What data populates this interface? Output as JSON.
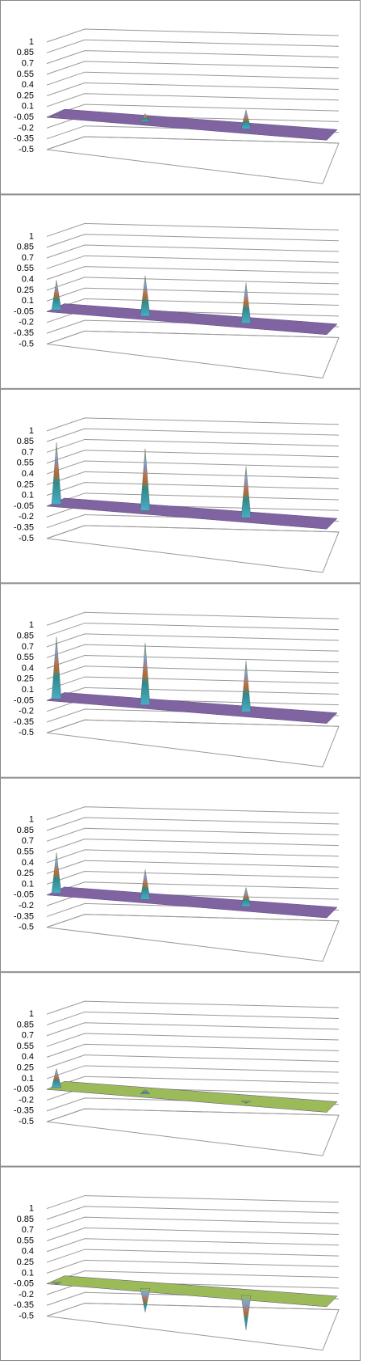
{
  "chart_data": [
    {
      "type": "surface",
      "color": "#8064a2",
      "categories": [
        null,
        null,
        null
      ],
      "values": [
        -0.05,
        0.1,
        0.25
      ],
      "ylim": [
        -0.5,
        1
      ],
      "yticks": [
        1,
        0.85,
        0.7,
        0.55,
        0.4,
        0.25,
        0.1,
        -0.05,
        -0.2,
        -0.35,
        -0.5
      ],
      "grid": true
    },
    {
      "type": "surface",
      "color": "#8064a2",
      "categories": [
        null,
        null,
        null
      ],
      "values": [
        0.4,
        0.55,
        0.55
      ],
      "ylim": [
        -0.5,
        1
      ],
      "yticks": [
        1,
        0.85,
        0.7,
        0.55,
        0.4,
        0.25,
        0.1,
        -0.05,
        -0.2,
        -0.35,
        -0.5
      ],
      "grid": true
    },
    {
      "type": "surface",
      "color": "#8064a2",
      "categories": [
        null,
        null,
        null
      ],
      "values": [
        0.85,
        0.85,
        0.7
      ],
      "ylim": [
        -0.5,
        1
      ],
      "yticks": [
        1,
        0.85,
        0.7,
        0.55,
        0.4,
        0.25,
        0.1,
        -0.05,
        -0.2,
        -0.35,
        -0.5
      ],
      "grid": true
    },
    {
      "type": "surface",
      "color": "#8064a2",
      "categories": [
        null,
        null,
        null
      ],
      "values": [
        0.85,
        0.85,
        0.7
      ],
      "ylim": [
        -0.5,
        1
      ],
      "yticks": [
        1,
        0.85,
        0.7,
        0.55,
        0.4,
        0.25,
        0.1,
        -0.05,
        -0.2,
        -0.35,
        -0.5
      ],
      "grid": true
    },
    {
      "type": "surface",
      "color": "#8064a2",
      "categories": [
        null,
        null,
        null
      ],
      "values": [
        0.55,
        0.4,
        0.25
      ],
      "ylim": [
        -0.5,
        1
      ],
      "yticks": [
        1,
        0.85,
        0.7,
        0.55,
        0.4,
        0.25,
        0.1,
        -0.05,
        -0.2,
        -0.35,
        -0.5
      ],
      "grid": true
    },
    {
      "type": "surface",
      "color": "#9bbb59",
      "categories": [
        null,
        null,
        null
      ],
      "values": [
        0.25,
        0.05,
        -0.05
      ],
      "ylim": [
        -0.5,
        1
      ],
      "yticks": [
        1,
        0.85,
        0.7,
        0.55,
        0.4,
        0.25,
        0.1,
        -0.05,
        -0.2,
        -0.35,
        -0.5
      ],
      "grid": true
    },
    {
      "type": "surface",
      "color": "#9bbb59",
      "categories": [
        null,
        null,
        null
      ],
      "values": [
        -0.05,
        -0.35,
        -0.5
      ],
      "ylim": [
        -0.5,
        1
      ],
      "yticks": [
        1,
        0.85,
        0.7,
        0.55,
        0.4,
        0.25,
        0.1,
        -0.05,
        -0.2,
        -0.35,
        -0.5
      ],
      "grid": true
    }
  ]
}
